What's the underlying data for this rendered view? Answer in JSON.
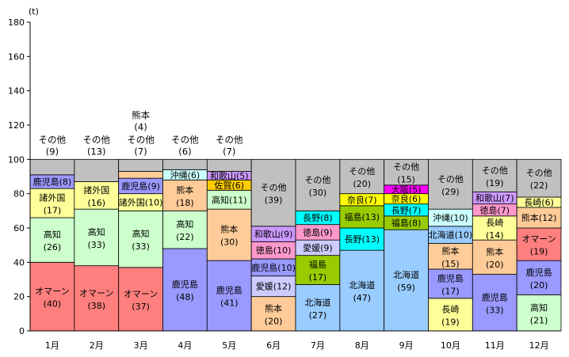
{
  "chart_data": {
    "type": "bar",
    "stacked": true,
    "ylabel": "(t)",
    "ylim": [
      0,
      180
    ],
    "yticks": [
      0,
      20,
      40,
      60,
      80,
      100,
      120,
      140,
      160,
      180
    ],
    "grid": false,
    "legend": "none",
    "categories": [
      "1月",
      "2月",
      "3月",
      "4月",
      "5月",
      "6月",
      "7月",
      "8月",
      "9月",
      "10月",
      "11月",
      "12月"
    ],
    "stacks": [
      {
        "month": "1月",
        "segments": [
          {
            "name": "オマーン",
            "value": 40,
            "color": "#ff7f7f"
          },
          {
            "name": "高知",
            "value": 26,
            "color": "#ccffcc"
          },
          {
            "name": "諸外国",
            "value": 17,
            "color": "#ffff99"
          },
          {
            "name": "鹿児島",
            "value": 8,
            "color": "#9999ff"
          },
          {
            "name": "その他",
            "value": 9,
            "color": "#c0c0c0"
          }
        ]
      },
      {
        "month": "2月",
        "segments": [
          {
            "name": "オマーン",
            "value": 38,
            "color": "#ff7f7f"
          },
          {
            "name": "高知",
            "value": 33,
            "color": "#ccffcc"
          },
          {
            "name": "諸外国",
            "value": 16,
            "color": "#ffff99"
          },
          {
            "name": "その他",
            "value": 13,
            "color": "#c0c0c0"
          }
        ]
      },
      {
        "month": "3月",
        "segments": [
          {
            "name": "オマーン",
            "value": 37,
            "color": "#ff7f7f"
          },
          {
            "name": "高知",
            "value": 33,
            "color": "#ccffcc"
          },
          {
            "name": "諸外国",
            "value": 10,
            "color": "#ffff99"
          },
          {
            "name": "鹿児島",
            "value": 9,
            "color": "#9999ff"
          },
          {
            "name": "熊本",
            "value": 4,
            "color": "#ffcc99"
          },
          {
            "name": "その他",
            "value": 7,
            "color": "#c0c0c0"
          }
        ]
      },
      {
        "month": "4月",
        "segments": [
          {
            "name": "鹿児島",
            "value": 48,
            "color": "#9999ff"
          },
          {
            "name": "高知",
            "value": 22,
            "color": "#ccffcc"
          },
          {
            "name": "熊本",
            "value": 18,
            "color": "#ffcc99"
          },
          {
            "name": "沖縄",
            "value": 6,
            "color": "#ccffff"
          },
          {
            "name": "その他",
            "value": 6,
            "color": "#c0c0c0"
          }
        ]
      },
      {
        "month": "5月",
        "segments": [
          {
            "name": "鹿児島",
            "value": 41,
            "color": "#9999ff"
          },
          {
            "name": "熊本",
            "value": 30,
            "color": "#ffcc99"
          },
          {
            "name": "高知",
            "value": 11,
            "color": "#ccffcc"
          },
          {
            "name": "佐賀",
            "value": 6,
            "color": "#ffcc00"
          },
          {
            "name": "和歌山",
            "value": 5,
            "color": "#cc99ff"
          },
          {
            "name": "その他",
            "value": 7,
            "color": "#c0c0c0"
          }
        ]
      },
      {
        "month": "6月",
        "segments": [
          {
            "name": "熊本",
            "value": 20,
            "color": "#ffcc99"
          },
          {
            "name": "愛媛",
            "value": 12,
            "color": "#ccccff"
          },
          {
            "name": "鹿児島",
            "value": 10,
            "color": "#9999ff"
          },
          {
            "name": "徳島",
            "value": 10,
            "color": "#ff99cc"
          },
          {
            "name": "和歌山",
            "value": 9,
            "color": "#cc99ff"
          },
          {
            "name": "その他",
            "value": 39,
            "color": "#c0c0c0"
          }
        ]
      },
      {
        "month": "7月",
        "segments": [
          {
            "name": "北海道",
            "value": 27,
            "color": "#99ccff"
          },
          {
            "name": "福島",
            "value": 17,
            "color": "#99cc00"
          },
          {
            "name": "愛媛",
            "value": 9,
            "color": "#ccccff"
          },
          {
            "name": "徳島",
            "value": 9,
            "color": "#ff99cc"
          },
          {
            "name": "長野",
            "value": 8,
            "color": "#00ffff"
          },
          {
            "name": "その他",
            "value": 30,
            "color": "#c0c0c0"
          }
        ]
      },
      {
        "month": "8月",
        "segments": [
          {
            "name": "北海道",
            "value": 47,
            "color": "#99ccff"
          },
          {
            "name": "長野",
            "value": 13,
            "color": "#00ffff"
          },
          {
            "name": "福島",
            "value": 13,
            "color": "#99cc00"
          },
          {
            "name": "奈良",
            "value": 7,
            "color": "#ffff00"
          },
          {
            "name": "その他",
            "value": 20,
            "color": "#c0c0c0"
          }
        ]
      },
      {
        "month": "9月",
        "segments": [
          {
            "name": "北海道",
            "value": 59,
            "color": "#99ccff"
          },
          {
            "name": "福島",
            "value": 8,
            "color": "#99cc00"
          },
          {
            "name": "長野",
            "value": 7,
            "color": "#00ffff"
          },
          {
            "name": "奈良",
            "value": 6,
            "color": "#ffff00"
          },
          {
            "name": "大阪",
            "value": 5,
            "color": "#ff00ff"
          },
          {
            "name": "その他",
            "value": 15,
            "color": "#c0c0c0"
          }
        ]
      },
      {
        "month": "10月",
        "segments": [
          {
            "name": "長崎",
            "value": 19,
            "color": "#ffff99"
          },
          {
            "name": "鹿児島",
            "value": 17,
            "color": "#9999ff"
          },
          {
            "name": "熊本",
            "value": 15,
            "color": "#ffcc99"
          },
          {
            "name": "北海道",
            "value": 10,
            "color": "#99ccff"
          },
          {
            "name": "沖縄",
            "value": 10,
            "color": "#ccffff"
          },
          {
            "name": "その他",
            "value": 29,
            "color": "#c0c0c0"
          }
        ]
      },
      {
        "month": "11月",
        "segments": [
          {
            "name": "鹿児島",
            "value": 33,
            "color": "#9999ff"
          },
          {
            "name": "熊本",
            "value": 20,
            "color": "#ffcc99"
          },
          {
            "name": "長崎",
            "value": 14,
            "color": "#ffff99"
          },
          {
            "name": "徳島",
            "value": 7,
            "color": "#ff99cc"
          },
          {
            "name": "和歌山",
            "value": 7,
            "color": "#cc99ff"
          },
          {
            "name": "その他",
            "value": 19,
            "color": "#c0c0c0"
          }
        ]
      },
      {
        "month": "12月",
        "segments": [
          {
            "name": "高知",
            "value": 21,
            "color": "#ccffcc"
          },
          {
            "name": "鹿児島",
            "value": 20,
            "color": "#9999ff"
          },
          {
            "name": "オマーン",
            "value": 19,
            "color": "#ff7f7f"
          },
          {
            "name": "熊本",
            "value": 12,
            "color": "#ffcc99"
          },
          {
            "name": "長崎",
            "value": 6,
            "color": "#ffff99"
          },
          {
            "name": "その他",
            "value": 22,
            "color": "#c0c0c0"
          }
        ]
      }
    ]
  }
}
